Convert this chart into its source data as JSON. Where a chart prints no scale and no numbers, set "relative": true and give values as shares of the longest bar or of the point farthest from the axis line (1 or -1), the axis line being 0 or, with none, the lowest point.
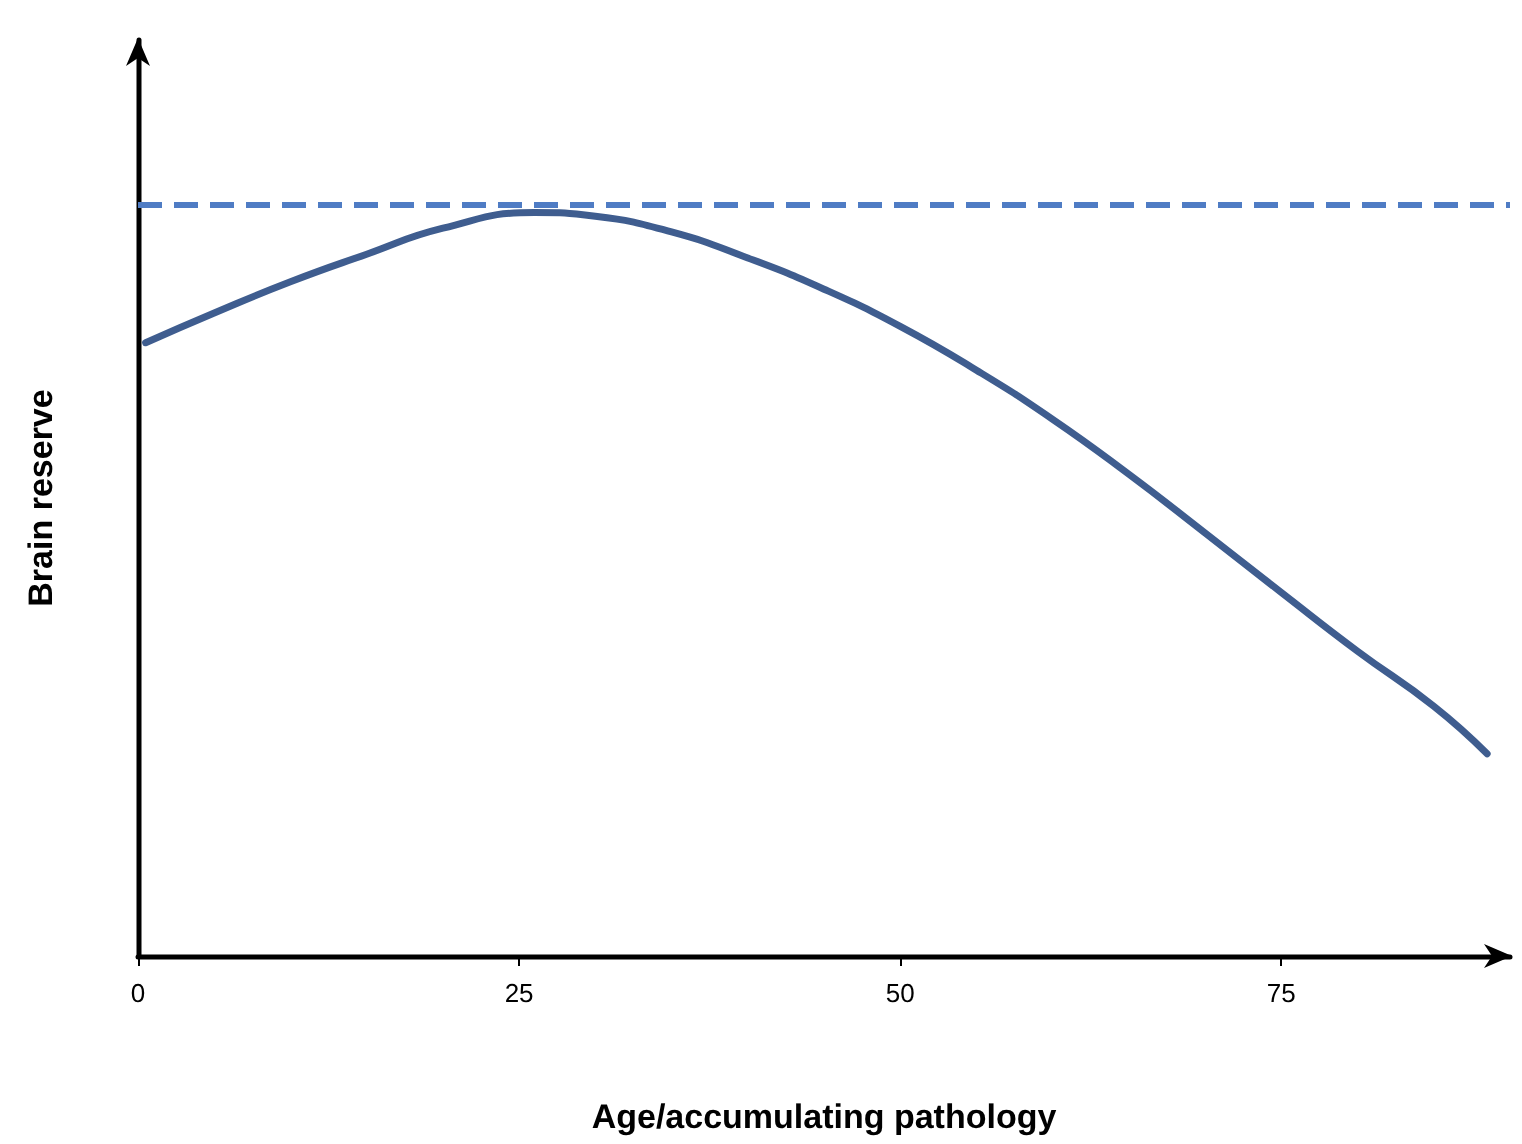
{
  "chart_data": {
    "type": "line",
    "relative": true,
    "xlabel": "Age/accumulating pathology",
    "ylabel": "Brain reserve",
    "xlim": [
      0,
      90
    ],
    "xticks": [
      0,
      25,
      50,
      75
    ],
    "grid": false,
    "marker": "none",
    "line_style": "solid",
    "series": [
      {
        "color": "#3f5d8f",
        "x": [
          0.5,
          5,
          10,
          15,
          20,
          26,
          30,
          35,
          40,
          45,
          50,
          55,
          60,
          65,
          70,
          75,
          80,
          85,
          88.5
        ],
        "values": [
          0.825,
          0.865,
          0.907,
          0.944,
          0.979,
          1,
          0.995,
          0.974,
          0.939,
          0.897,
          0.847,
          0.788,
          0.722,
          0.648,
          0.569,
          0.489,
          0.41,
          0.336,
          0.272
        ]
      }
    ],
    "ref_lines": [
      {
        "axis": "y",
        "value": 1.01,
        "color": "#4f7cc4",
        "line_style": "dashed"
      }
    ]
  }
}
